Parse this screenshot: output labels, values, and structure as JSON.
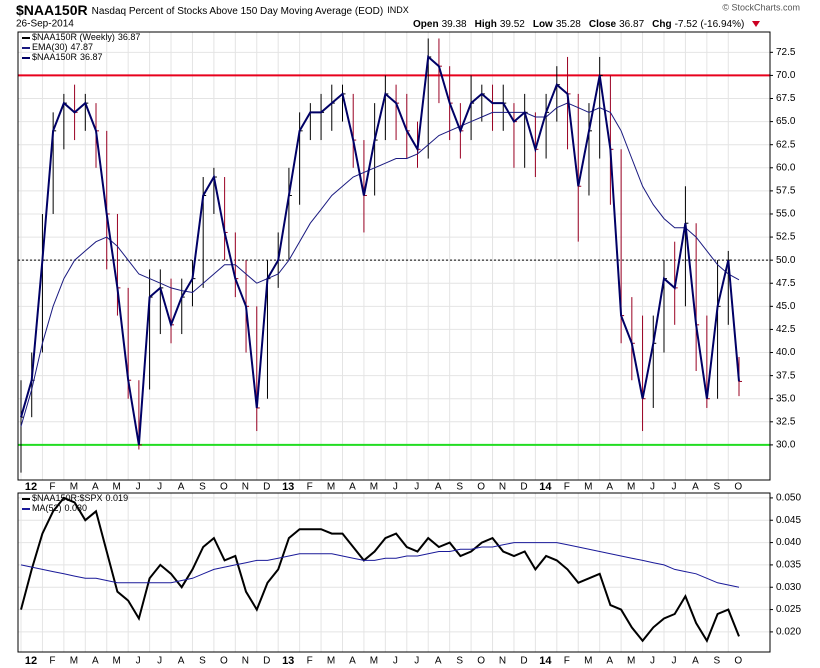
{
  "header": {
    "symbol": "$NAA150R",
    "title": "Nasdaq Percent of Stocks Above 150 Day Moving Average (EOD)",
    "exchange": "INDX",
    "date": "26-Sep-2014",
    "copyright": "© StockCharts.com",
    "stats": [
      {
        "name": "Open",
        "value": 39.38
      },
      {
        "name": "High",
        "value": 39.52
      },
      {
        "name": "Low",
        "value": 35.28
      },
      {
        "name": "Close",
        "value": 36.87
      },
      {
        "name": "Chg",
        "value": -7.52
      }
    ],
    "chg_pct": "(-16.94%)"
  },
  "chart_data": [
    {
      "type": "ohlc",
      "grid": true,
      "categories": [
        "12",
        null,
        "F",
        null,
        "M",
        null,
        "A",
        null,
        "M",
        null,
        "J",
        null,
        "J",
        null,
        "A",
        null,
        "S",
        null,
        "O",
        null,
        "N",
        null,
        "D",
        null,
        "13",
        null,
        "F",
        null,
        "M",
        null,
        "A",
        null,
        "M",
        null,
        "J",
        null,
        "J",
        null,
        "A",
        null,
        "S",
        null,
        "O",
        null,
        "N",
        null,
        "D",
        null,
        "14",
        null,
        "F",
        null,
        "M",
        null,
        "A",
        null,
        "M",
        null,
        "J",
        null,
        "J",
        null,
        "A",
        null,
        "S",
        null,
        "O",
        null
      ],
      "ylim": [
        26.2,
        74.7
      ],
      "yticks": [
        {
          "value": 30,
          "label": "30.0"
        },
        32.5,
        {
          "value": 35,
          "label": "35.0"
        },
        37.5,
        {
          "value": 40,
          "label": "40.0"
        },
        42.5,
        {
          "value": 45,
          "label": "45.0"
        },
        47.5,
        {
          "value": 50,
          "label": "50.0"
        },
        52.5,
        {
          "value": 55,
          "label": "55.0"
        },
        57.5,
        {
          "value": 60,
          "label": "60.0"
        },
        62.5,
        {
          "value": 65,
          "label": "65.0"
        },
        67.5,
        {
          "value": 70,
          "label": "70.0"
        },
        72.5
      ],
      "reference_lines": [
        {
          "value": 70,
          "color": "#e8001c",
          "dash": false
        },
        {
          "value": 50,
          "color": "#000000",
          "dash": true
        },
        {
          "value": 30,
          "color": "#22dd22",
          "dash": false
        }
      ],
      "series": [
        {
          "name": "$NAA150R (Weekly)",
          "type": "ohlc",
          "color": "#000000",
          "down_color": "#990022",
          "values": [
            33,
            37,
            50,
            64,
            67,
            66,
            67,
            64,
            55,
            47,
            37,
            30,
            46,
            47,
            43,
            46,
            48,
            57,
            59,
            53,
            48,
            45,
            34,
            48,
            50,
            57,
            64,
            66,
            66,
            67,
            68,
            63,
            57,
            63,
            68,
            67,
            64,
            62,
            72,
            71,
            67,
            64,
            67,
            68,
            67,
            67,
            65,
            66,
            62,
            66,
            69,
            68,
            58,
            64,
            70,
            62,
            44,
            41,
            35,
            41,
            48,
            47,
            54,
            43,
            35,
            45,
            50,
            36.87
          ],
          "high": [
            37,
            40,
            55,
            66,
            68,
            69,
            68,
            67,
            64,
            55,
            47,
            37,
            49,
            49,
            48,
            48,
            50,
            59,
            60,
            59,
            53,
            50,
            45,
            50,
            53,
            60,
            66,
            67,
            68,
            69,
            69,
            68,
            63,
            67,
            70,
            69,
            68,
            65,
            74,
            74,
            71,
            67,
            70,
            69,
            69,
            69,
            67,
            68,
            66,
            68,
            71,
            72,
            68,
            67,
            72,
            70,
            62,
            46,
            44,
            44,
            50,
            52,
            58,
            54,
            44,
            50,
            51,
            39.52
          ],
          "low": [
            27,
            33,
            40,
            55,
            62,
            63,
            64,
            60,
            49,
            44,
            35,
            29.5,
            36,
            42,
            41,
            42,
            45,
            47,
            55,
            50,
            46,
            40,
            31.5,
            35,
            47,
            50,
            56,
            63,
            63,
            64,
            65,
            60,
            53,
            57,
            63,
            63,
            61,
            60,
            61,
            67,
            63,
            61,
            63,
            65,
            64,
            64,
            60,
            60,
            59,
            61,
            65,
            62,
            52,
            57,
            61,
            56,
            41,
            37,
            31.5,
            34,
            40,
            43,
            45,
            38,
            34,
            35,
            43,
            35.28
          ]
        },
        {
          "name": "EMA(30)",
          "type": "line",
          "color": "#1a1a80",
          "width": 1,
          "values": [
            32,
            36,
            41,
            45,
            48,
            50,
            51,
            52,
            52.5,
            51.5,
            50,
            48.5,
            48,
            47.5,
            47,
            46.7,
            46.5,
            47.5,
            48.5,
            49.5,
            49.5,
            48.5,
            47.5,
            48,
            48.5,
            50,
            52,
            54,
            55.5,
            57,
            58,
            59,
            59.5,
            60,
            60.5,
            61,
            61,
            61.5,
            62.5,
            63.5,
            64,
            64.5,
            65,
            65.5,
            66,
            66,
            66,
            66,
            65.5,
            65.5,
            66.5,
            67,
            66.5,
            66,
            66.5,
            66,
            64,
            61,
            58,
            56,
            54.5,
            53.5,
            53.5,
            52.5,
            51,
            49.5,
            48.5,
            47.87
          ]
        },
        {
          "name": "$NAA150R",
          "type": "line",
          "color": "#000066",
          "width": 2,
          "values": [
            33,
            37,
            50,
            64,
            67,
            66,
            67,
            64,
            55,
            47,
            37,
            30,
            46,
            47,
            43,
            46,
            48,
            57,
            59,
            53,
            48,
            45,
            34,
            48,
            50,
            57,
            64,
            66,
            66,
            67,
            68,
            63,
            57,
            63,
            68,
            67,
            64,
            62,
            72,
            71,
            67,
            64,
            67,
            68,
            67,
            67,
            65,
            66,
            62,
            66,
            69,
            68,
            58,
            64,
            70,
            62,
            44,
            41,
            35,
            41,
            48,
            47,
            54,
            43,
            35,
            45,
            50,
            36.87
          ]
        }
      ]
    },
    {
      "type": "line",
      "grid": true,
      "categories": [
        "12",
        null,
        "F",
        null,
        "M",
        null,
        "A",
        null,
        "M",
        null,
        "J",
        null,
        "J",
        null,
        "A",
        null,
        "S",
        null,
        "O",
        null,
        "N",
        null,
        "D",
        null,
        "13",
        null,
        "F",
        null,
        "M",
        null,
        "A",
        null,
        "M",
        null,
        "J",
        null,
        "J",
        null,
        "A",
        null,
        "S",
        null,
        "O",
        null,
        "N",
        null,
        "D",
        null,
        "14",
        null,
        "F",
        null,
        "M",
        null,
        "A",
        null,
        "M",
        null,
        "J",
        null,
        "J",
        null,
        "A",
        null,
        "S",
        null,
        "O",
        null
      ],
      "ylim": [
        0.0155,
        0.0511
      ],
      "yticks": [
        {
          "value": 0.02,
          "label": "0.020"
        },
        0.025,
        {
          "value": 0.03,
          "label": "0.030"
        },
        0.035,
        {
          "value": 0.04,
          "label": "0.040"
        },
        0.045,
        {
          "value": 0.05,
          "label": "0.050"
        }
      ],
      "series": [
        {
          "name": "$NAA150R:$SPX",
          "type": "line",
          "color": "#000000",
          "width": 2,
          "values": [
            0.025,
            0.034,
            0.042,
            0.047,
            0.05,
            0.049,
            0.045,
            0.047,
            0.038,
            0.029,
            0.027,
            0.023,
            0.032,
            0.035,
            0.033,
            0.03,
            0.034,
            0.039,
            0.041,
            0.036,
            0.037,
            0.029,
            0.025,
            0.031,
            0.034,
            0.041,
            0.043,
            0.043,
            0.043,
            0.042,
            0.042,
            0.039,
            0.036,
            0.038,
            0.041,
            0.042,
            0.039,
            0.038,
            0.041,
            0.039,
            0.04,
            0.037,
            0.038,
            0.04,
            0.041,
            0.038,
            0.037,
            0.038,
            0.034,
            0.037,
            0.036,
            0.034,
            0.031,
            0.032,
            0.033,
            0.026,
            0.025,
            0.021,
            0.018,
            0.021,
            0.023,
            0.024,
            0.028,
            0.022,
            0.018,
            0.024,
            0.025,
            0.019
          ]
        },
        {
          "name": "MA(52)",
          "type": "line",
          "color": "#1a1a99",
          "width": 1,
          "last_value_label": "0.030",
          "values": [
            0.035,
            0.0345,
            0.034,
            0.0335,
            0.033,
            0.0325,
            0.032,
            0.032,
            0.0315,
            0.031,
            0.031,
            0.031,
            0.031,
            0.031,
            0.031,
            0.0315,
            0.032,
            0.033,
            0.034,
            0.0345,
            0.035,
            0.0355,
            0.036,
            0.036,
            0.0365,
            0.037,
            0.0375,
            0.0375,
            0.0375,
            0.0375,
            0.037,
            0.0365,
            0.036,
            0.036,
            0.0365,
            0.0365,
            0.037,
            0.037,
            0.0375,
            0.038,
            0.038,
            0.0385,
            0.0385,
            0.039,
            0.039,
            0.0395,
            0.04,
            0.04,
            0.04,
            0.04,
            0.04,
            0.0395,
            0.039,
            0.0385,
            0.038,
            0.0375,
            0.037,
            0.0365,
            0.036,
            0.0355,
            0.035,
            0.034,
            0.0335,
            0.033,
            0.032,
            0.031,
            0.0305,
            0.03
          ]
        }
      ]
    }
  ]
}
